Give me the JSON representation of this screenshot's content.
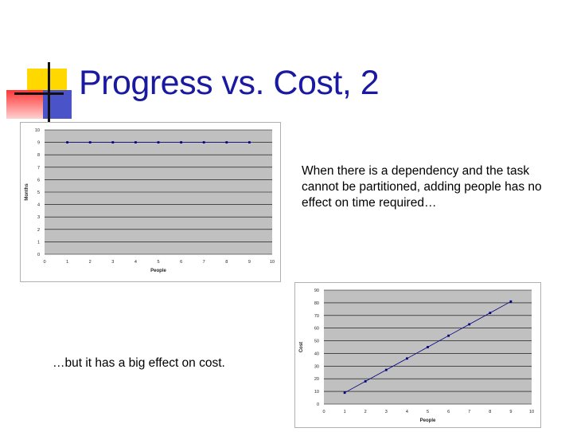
{
  "slide": {
    "title": "Progress vs. Cost, 2",
    "caption_top": "When there is a dependency and the task cannot be partitioned, adding people has no effect on time required…",
    "caption_bottom": "…but it has a big effect on cost."
  },
  "colors": {
    "title": "#1a1aa0",
    "plot_bg": "#c0c0c0",
    "series": "#000080",
    "accent_yellow": "#ffd800",
    "accent_red": "#ff3535",
    "accent_blue": "#4b53c8"
  },
  "chart_data": [
    {
      "type": "line",
      "xlabel": "People",
      "ylabel": "Months",
      "xlim": [
        0,
        10
      ],
      "ylim": [
        0,
        10
      ],
      "x_ticks": [
        "0",
        "1",
        "2",
        "3",
        "4",
        "5",
        "6",
        "7",
        "8",
        "9",
        "10"
      ],
      "y_ticks": [
        "0",
        "1",
        "2",
        "3",
        "4",
        "5",
        "6",
        "7",
        "8",
        "9",
        "10"
      ],
      "grid": true,
      "series": [
        {
          "x": [
            1,
            2,
            3,
            4,
            5,
            6,
            7,
            8,
            9
          ],
          "values": [
            9,
            9,
            9,
            9,
            9,
            9,
            9,
            9,
            9
          ]
        }
      ]
    },
    {
      "type": "line",
      "xlabel": "People",
      "ylabel": "Cost",
      "xlim": [
        0,
        10
      ],
      "ylim": [
        0,
        90
      ],
      "x_ticks": [
        "0",
        "1",
        "2",
        "3",
        "4",
        "5",
        "6",
        "7",
        "8",
        "9",
        "10"
      ],
      "y_ticks": [
        "0",
        "10",
        "20",
        "30",
        "40",
        "50",
        "60",
        "70",
        "80",
        "90"
      ],
      "grid": true,
      "series": [
        {
          "x": [
            1,
            2,
            3,
            4,
            5,
            6,
            7,
            8,
            9
          ],
          "values": [
            9,
            18,
            27,
            36,
            45,
            54,
            63,
            72,
            81
          ]
        }
      ]
    }
  ]
}
